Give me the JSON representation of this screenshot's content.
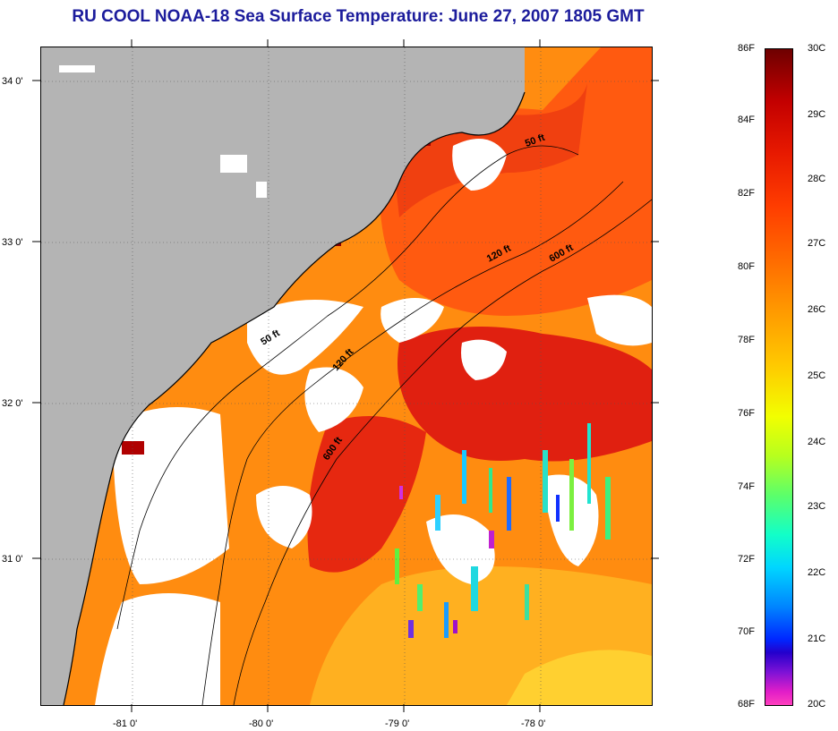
{
  "title": "RU COOL  NOAA-18  Sea Surface Temperature:  June 27, 2007 1805 GMT",
  "map": {
    "lat_labels": [
      "34 0'",
      "33 0'",
      "32 0'",
      "31 0'"
    ],
    "lon_labels": [
      "-81 0'",
      "-80 0'",
      "-79 0'",
      "-78 0'"
    ],
    "isobath_labels": [
      "50 ft",
      "50 ft",
      "120 ft",
      "120 ft",
      "600 ft",
      "600 ft"
    ]
  },
  "colorbar": {
    "fahrenheit_labels": [
      "86F",
      "84F",
      "82F",
      "80F",
      "78F",
      "76F",
      "74F",
      "72F",
      "70F",
      "68F"
    ],
    "celsius_labels": [
      "30C",
      "29C",
      "28C",
      "27C",
      "26C",
      "25C",
      "24C",
      "23C",
      "22C",
      "21C",
      "20C"
    ]
  },
  "colors": {
    "title": "#1c1c9c",
    "land": "#b4b4b4",
    "cloud": "#ffffff"
  }
}
